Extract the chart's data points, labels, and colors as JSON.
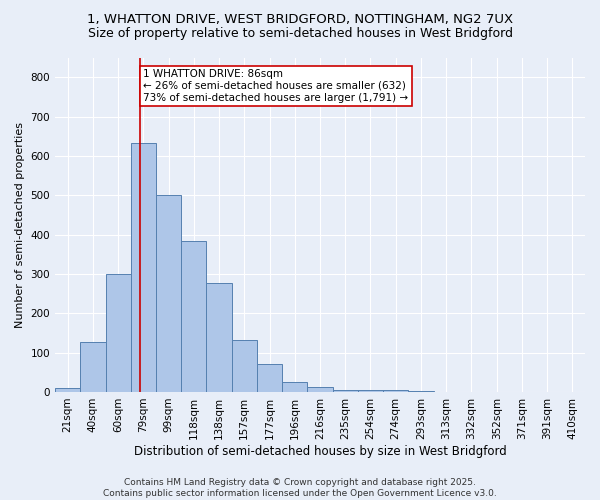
{
  "title_line1": "1, WHATTON DRIVE, WEST BRIDGFORD, NOTTINGHAM, NG2 7UX",
  "title_line2": "Size of property relative to semi-detached houses in West Bridgford",
  "xlabel": "Distribution of semi-detached houses by size in West Bridgford",
  "ylabel": "Number of semi-detached properties",
  "bin_labels": [
    "21sqm",
    "40sqm",
    "60sqm",
    "79sqm",
    "99sqm",
    "118sqm",
    "138sqm",
    "157sqm",
    "177sqm",
    "196sqm",
    "216sqm",
    "235sqm",
    "254sqm",
    "274sqm",
    "293sqm",
    "313sqm",
    "332sqm",
    "352sqm",
    "371sqm",
    "391sqm",
    "410sqm"
  ],
  "bar_values": [
    10,
    128,
    300,
    632,
    500,
    383,
    278,
    133,
    70,
    25,
    13,
    5,
    5,
    5,
    2,
    0,
    0,
    0,
    0,
    0,
    0
  ],
  "bar_color": "#aec6e8",
  "bar_edge_color": "#5580b0",
  "vline_color": "#cc0000",
  "vline_x_index": 3,
  "vline_x_offset": 0.35,
  "annotation_text": "1 WHATTON DRIVE: 86sqm\n← 26% of semi-detached houses are smaller (632)\n73% of semi-detached houses are larger (1,791) →",
  "annotation_box_facecolor": "#ffffff",
  "annotation_box_edgecolor": "#cc0000",
  "ylim": [
    0,
    850
  ],
  "yticks": [
    0,
    100,
    200,
    300,
    400,
    500,
    600,
    700,
    800
  ],
  "footer_text": "Contains HM Land Registry data © Crown copyright and database right 2025.\nContains public sector information licensed under the Open Government Licence v3.0.",
  "bg_color": "#e8eef8",
  "plot_bg_color": "#e8eef8",
  "grid_color": "#ffffff",
  "title_fontsize": 9.5,
  "subtitle_fontsize": 9,
  "axis_label_fontsize": 8.5,
  "tick_fontsize": 7.5,
  "annotation_fontsize": 7.5,
  "footer_fontsize": 6.5,
  "ylabel_fontsize": 8
}
